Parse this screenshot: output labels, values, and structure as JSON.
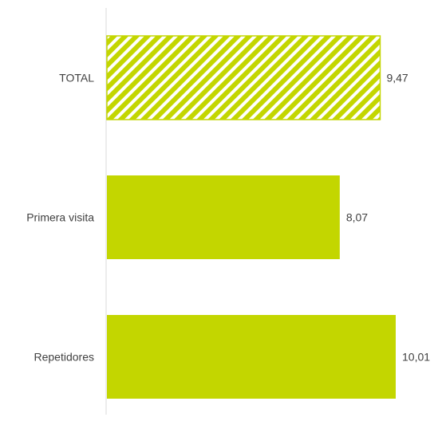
{
  "chart_data": {
    "type": "bar",
    "orientation": "horizontal",
    "categories": [
      "TOTAL",
      "Primera visita",
      "Repetidores"
    ],
    "values": [
      9.47,
      8.07,
      10.01
    ],
    "value_labels": [
      "9,47",
      "8,07",
      "10,01"
    ],
    "bar_styles": [
      "hatched",
      "solid",
      "solid"
    ],
    "title": "",
    "xlabel": "",
    "ylabel": "",
    "xlim": [
      0,
      10.01
    ],
    "grid": false,
    "legend": "none",
    "colors": {
      "bar": "#c3d600",
      "axis": "#d9d9d9",
      "text": "#404040"
    }
  }
}
